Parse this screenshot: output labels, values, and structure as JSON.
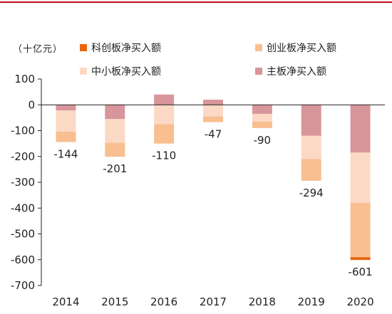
{
  "chart_data": {
    "type": "bar",
    "stacked": true,
    "unit": "（十亿元）",
    "categories": [
      "2014",
      "2015",
      "2016",
      "2017",
      "2018",
      "2019",
      "2020"
    ],
    "ylim": [
      -700,
      100
    ],
    "yticks": [
      100,
      0,
      -100,
      -200,
      -300,
      -400,
      -500,
      -600,
      -700
    ],
    "series": [
      {
        "name": "主板净买入额",
        "color": "#d9959c",
        "values": [
          -22,
          -55,
          40,
          20,
          -35,
          -120,
          -185
        ]
      },
      {
        "name": "中小板净买入额",
        "color": "#fcd9c4",
        "values": [
          -82,
          -92,
          -75,
          -45,
          -30,
          -90,
          -195
        ]
      },
      {
        "name": "创业板净买入额",
        "color": "#f9bf90",
        "values": [
          -40,
          -54,
          -75,
          -22,
          -25,
          -84,
          -210
        ]
      },
      {
        "name": "科创板净买入额",
        "color": "#e8650f",
        "values": [
          0,
          0,
          0,
          0,
          0,
          0,
          -11
        ]
      }
    ],
    "totals": [
      -144,
      -201,
      -110,
      -47,
      -90,
      -294,
      -601
    ],
    "total_labels": [
      "-144",
      "-201",
      "-110",
      "-47",
      "-90",
      "-294",
      "-601"
    ]
  },
  "legend": {
    "items": [
      {
        "label": "科创板净买入额",
        "color": "#e8650f"
      },
      {
        "label": "创业板净买入额",
        "color": "#f9bf90"
      },
      {
        "label": "中小板净买入额",
        "color": "#fcd9c4"
      },
      {
        "label": "主板净买入额",
        "color": "#d9959c"
      }
    ]
  }
}
